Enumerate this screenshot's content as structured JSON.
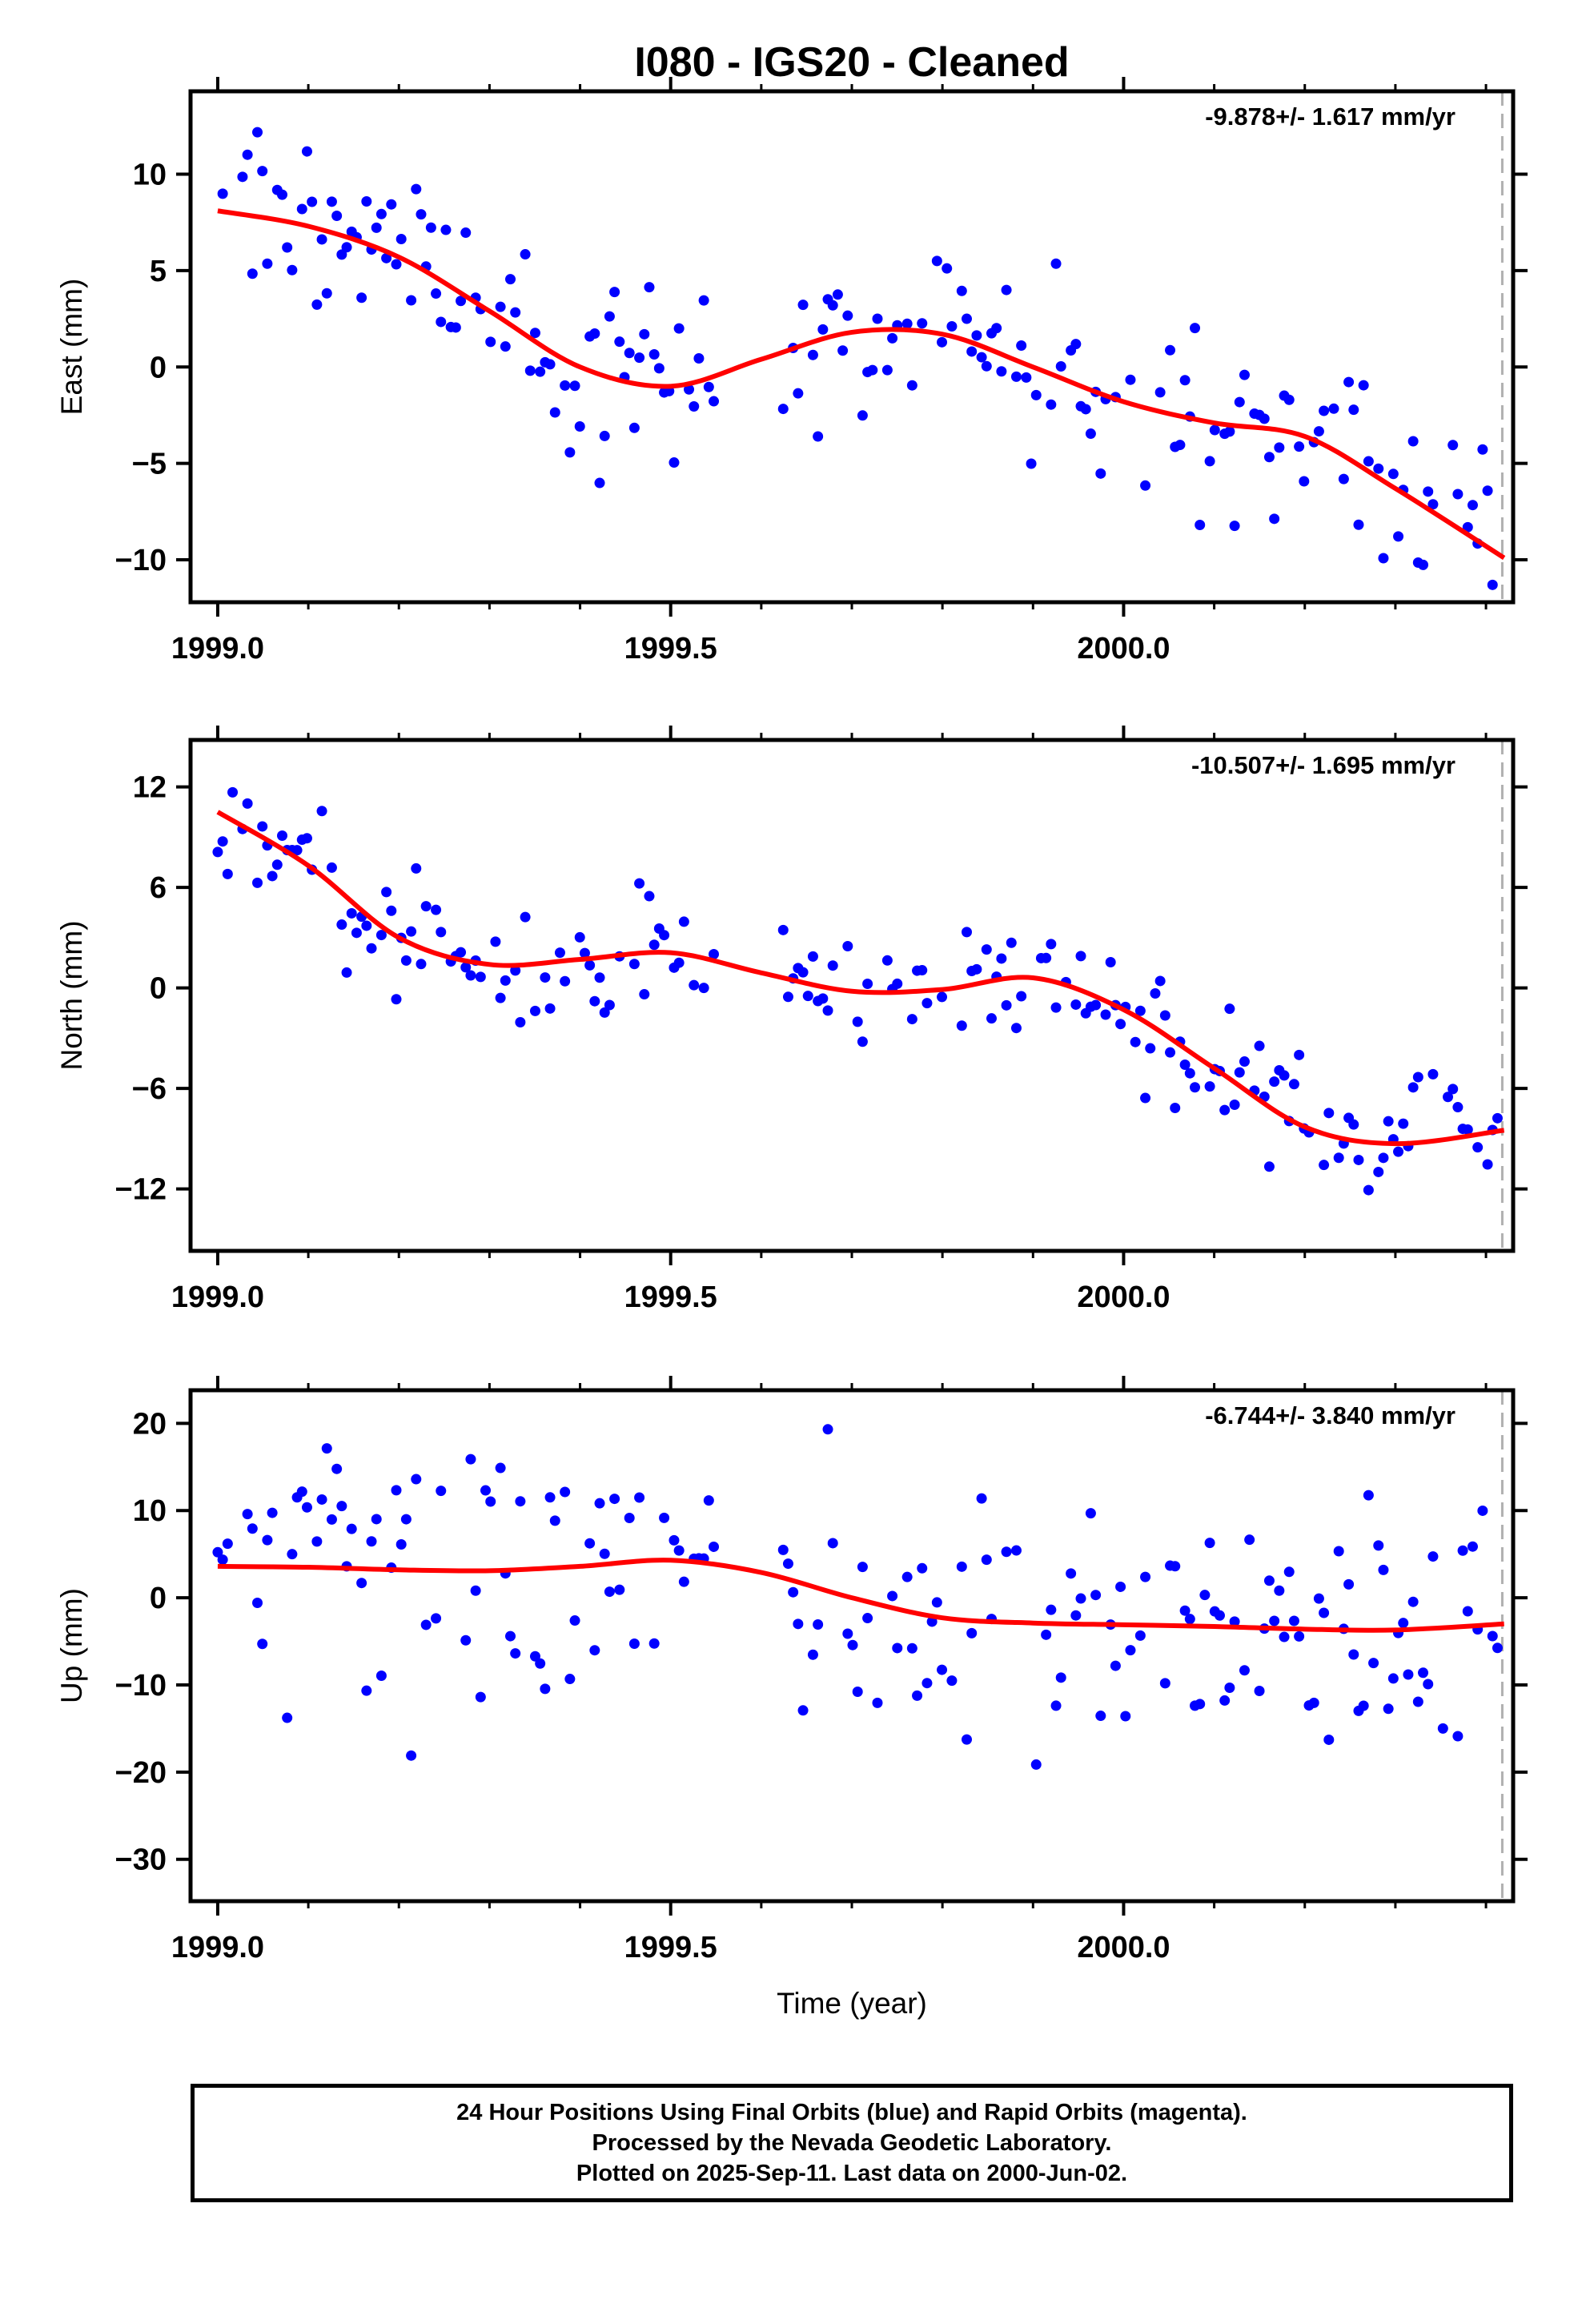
{
  "title": "I080  - IGS20 - Cleaned",
  "xlabel": "Time (year)",
  "footer": {
    "line1": "24 Hour Positions Using Final Orbits (blue) and Rapid Orbits (magenta).",
    "line2": "Processed by the Nevada Geodetic Laboratory.",
    "line3": "Plotted on 2025-Sep-11. Last data on 2000-Jun-02."
  },
  "colors": {
    "data_points": "#0000ff",
    "fit_line": "#ff0000",
    "last_data_marker": "#b0b0b0",
    "frame": "#000000"
  },
  "chart_data": [
    {
      "type": "scatter",
      "component": "east",
      "ylabel": "East (mm)",
      "rate_text": "-9.878+/- 1.617 mm/yr",
      "xlim": [
        1998.97,
        2000.43
      ],
      "ylim": [
        -12.2,
        14.3
      ],
      "x_ticks": [
        1999.0,
        1999.5,
        2000.0
      ],
      "x_tick_labels": [
        "1999.0",
        "1999.5",
        "2000.0"
      ],
      "y_ticks": [
        -10,
        -5,
        0,
        5,
        10
      ],
      "y_tick_labels": [
        "−10",
        "−5",
        "0",
        "5",
        "10"
      ],
      "last_data_x": 2000.418,
      "fit_curve": {
        "x": [
          1999.0,
          1999.1,
          1999.2,
          1999.3,
          1999.4,
          1999.5,
          1999.6,
          1999.7,
          1999.8,
          1999.9,
          2000.0,
          2000.1,
          2000.2,
          2000.3,
          2000.42
        ],
        "y": [
          8.1,
          7.3,
          5.7,
          2.9,
          0.0,
          -1.0,
          0.4,
          1.8,
          1.7,
          0.0,
          -1.8,
          -2.9,
          -3.6,
          -6.3,
          -9.9
        ]
      },
      "noise_sd": 2.1,
      "gap": [
        1999.55,
        1999.62
      ],
      "step_days": 2
    },
    {
      "type": "scatter",
      "component": "north",
      "ylabel": "North (mm)",
      "rate_text": "-10.507+/- 1.695 mm/yr",
      "xlim": [
        1998.97,
        2000.43
      ],
      "ylim": [
        -15.7,
        14.8
      ],
      "x_ticks": [
        1999.0,
        1999.5,
        2000.0
      ],
      "x_tick_labels": [
        "1999.0",
        "1999.5",
        "2000.0"
      ],
      "y_ticks": [
        -12,
        -6,
        0,
        6,
        12
      ],
      "y_tick_labels": [
        "−12",
        "−6",
        "0",
        "6",
        "12"
      ],
      "last_data_x": 2000.418,
      "fit_curve": {
        "x": [
          1999.0,
          1999.1,
          1999.2,
          1999.3,
          1999.4,
          1999.5,
          1999.6,
          1999.7,
          1999.8,
          1999.9,
          2000.0,
          2000.1,
          2000.2,
          2000.3,
          2000.42
        ],
        "y": [
          10.5,
          7.3,
          3.0,
          1.4,
          1.7,
          2.1,
          0.9,
          -0.2,
          -0.1,
          0.6,
          -1.3,
          -4.8,
          -8.3,
          -9.3,
          -8.5
        ]
      },
      "noise_sd": 2.0,
      "gap": [
        1999.55,
        1999.62
      ],
      "step_days": 2
    },
    {
      "type": "scatter",
      "component": "up",
      "ylabel": "Up (mm)",
      "rate_text": "-6.744+/- 3.840 mm/yr",
      "xlim": [
        1998.97,
        2000.43
      ],
      "ylim": [
        -34.8,
        23.8
      ],
      "x_ticks": [
        1999.0,
        1999.5,
        2000.0
      ],
      "x_tick_labels": [
        "1999.0",
        "1999.5",
        "2000.0"
      ],
      "y_ticks": [
        -30,
        -20,
        -10,
        0,
        10,
        20
      ],
      "y_tick_labels": [
        "−30",
        "−20",
        "−10",
        "0",
        "10",
        "20"
      ],
      "last_data_x": 2000.418,
      "fit_curve": {
        "x": [
          1999.0,
          1999.1,
          1999.2,
          1999.3,
          1999.4,
          1999.5,
          1999.6,
          1999.7,
          1999.8,
          1999.9,
          2000.0,
          2000.1,
          2000.2,
          2000.3,
          2000.42
        ],
        "y": [
          3.6,
          3.5,
          3.2,
          3.1,
          3.6,
          4.3,
          2.9,
          0.0,
          -2.3,
          -2.9,
          -3.1,
          -3.3,
          -3.6,
          -3.7,
          -3.0
        ]
      },
      "noise_sd": 7.5,
      "gap": [
        1999.55,
        1999.62
      ],
      "step_days": 2
    }
  ]
}
